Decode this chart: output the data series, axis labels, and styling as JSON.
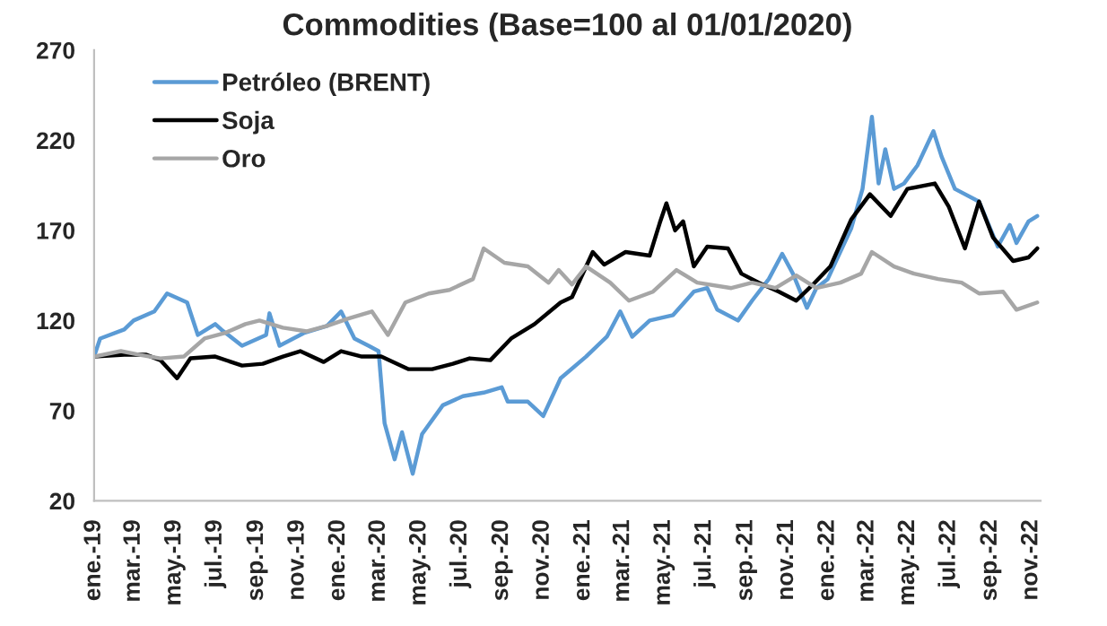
{
  "chart_data": {
    "type": "line",
    "title": "Commodities (Base=100 al 01/01/2020)",
    "ylim": [
      20,
      270
    ],
    "yticks": [
      20,
      70,
      120,
      170,
      220,
      270
    ],
    "xlim": [
      "2019-01-01",
      "2022-11-15"
    ],
    "xticks": [
      {
        "value": "2019-01-01",
        "label": "ene.-19"
      },
      {
        "value": "2019-03-01",
        "label": "mar.-19"
      },
      {
        "value": "2019-05-01",
        "label": "may.-19"
      },
      {
        "value": "2019-07-01",
        "label": "jul.-19"
      },
      {
        "value": "2019-09-01",
        "label": "sep.-19"
      },
      {
        "value": "2019-11-01",
        "label": "nov.-19"
      },
      {
        "value": "2020-01-01",
        "label": "ene.-20"
      },
      {
        "value": "2020-03-01",
        "label": "mar.-20"
      },
      {
        "value": "2020-05-01",
        "label": "may.-20"
      },
      {
        "value": "2020-07-01",
        "label": "jul.-20"
      },
      {
        "value": "2020-09-01",
        "label": "sep.-20"
      },
      {
        "value": "2020-11-01",
        "label": "nov.-20"
      },
      {
        "value": "2021-01-01",
        "label": "ene.-21"
      },
      {
        "value": "2021-03-01",
        "label": "mar.-21"
      },
      {
        "value": "2021-05-01",
        "label": "may.-21"
      },
      {
        "value": "2021-07-01",
        "label": "jul.-21"
      },
      {
        "value": "2021-09-01",
        "label": "sep.-21"
      },
      {
        "value": "2021-11-01",
        "label": "nov.-21"
      },
      {
        "value": "2022-01-01",
        "label": "ene.-22"
      },
      {
        "value": "2022-03-01",
        "label": "mar.-22"
      },
      {
        "value": "2022-05-01",
        "label": "may.-22"
      },
      {
        "value": "2022-07-01",
        "label": "jul.-22"
      },
      {
        "value": "2022-09-01",
        "label": "sep.-22"
      },
      {
        "value": "2022-11-01",
        "label": "nov.-22"
      }
    ],
    "grid": false,
    "legend": "top left",
    "marker": "none",
    "line_style": "solid",
    "series": [
      {
        "name": "Petróleo (BRENT)",
        "color": "#5b9bd5",
        "x": [
          "2019-01-01",
          "2019-01-10",
          "2019-02-15",
          "2019-03-01",
          "2019-04-01",
          "2019-04-20",
          "2019-05-20",
          "2019-06-05",
          "2019-07-01",
          "2019-07-10",
          "2019-08-10",
          "2019-09-15",
          "2019-09-20",
          "2019-10-05",
          "2019-11-10",
          "2019-12-15",
          "2020-01-05",
          "2020-01-25",
          "2020-02-15",
          "2020-03-01",
          "2020-03-10",
          "2020-03-25",
          "2020-04-05",
          "2020-04-21",
          "2020-05-05",
          "2020-06-05",
          "2020-07-05",
          "2020-08-05",
          "2020-09-01",
          "2020-09-10",
          "2020-10-10",
          "2020-11-02",
          "2020-11-28",
          "2021-01-05",
          "2021-02-05",
          "2021-02-25",
          "2021-03-15",
          "2021-04-10",
          "2021-05-15",
          "2021-06-15",
          "2021-07-05",
          "2021-07-20",
          "2021-08-20",
          "2021-09-10",
          "2021-10-05",
          "2021-10-25",
          "2021-11-10",
          "2021-12-01",
          "2021-12-15",
          "2022-01-01",
          "2022-02-05",
          "2022-02-22",
          "2022-03-08",
          "2022-03-18",
          "2022-03-28",
          "2022-04-10",
          "2022-04-25",
          "2022-05-15",
          "2022-06-08",
          "2022-06-20",
          "2022-07-10",
          "2022-08-15",
          "2022-09-12",
          "2022-09-30",
          "2022-10-10",
          "2022-10-28",
          "2022-11-10"
        ],
        "values": [
          100,
          110,
          115,
          120,
          125,
          135,
          130,
          112,
          118,
          115,
          106,
          112,
          124,
          106,
          113,
          117,
          125,
          110,
          106,
          103,
          63,
          43,
          58,
          35,
          57,
          73,
          78,
          80,
          83,
          75,
          75,
          67,
          88,
          100,
          111,
          125,
          111,
          120,
          123,
          136,
          138,
          126,
          120,
          131,
          143,
          157,
          146,
          127,
          138,
          143,
          171,
          193,
          233,
          196,
          215,
          193,
          196,
          206,
          225,
          211,
          193,
          186,
          161,
          173,
          163,
          175,
          178
        ]
      },
      {
        "name": "Soja",
        "color": "#000000",
        "x": [
          "2019-01-01",
          "2019-02-15",
          "2019-03-20",
          "2019-04-10",
          "2019-05-05",
          "2019-05-25",
          "2019-07-01",
          "2019-08-10",
          "2019-09-10",
          "2019-10-10",
          "2019-11-05",
          "2019-12-10",
          "2020-01-05",
          "2020-02-05",
          "2020-03-05",
          "2020-04-15",
          "2020-05-20",
          "2020-06-20",
          "2020-07-15",
          "2020-08-15",
          "2020-09-15",
          "2020-10-20",
          "2020-11-28",
          "2020-12-15",
          "2021-01-15",
          "2021-02-01",
          "2021-03-05",
          "2021-04-10",
          "2021-04-25",
          "2021-05-05",
          "2021-05-18",
          "2021-05-30",
          "2021-06-15",
          "2021-07-05",
          "2021-08-05",
          "2021-08-25",
          "2021-09-20",
          "2021-10-20",
          "2021-11-15",
          "2021-12-10",
          "2022-01-05",
          "2022-02-05",
          "2022-03-05",
          "2022-04-05",
          "2022-04-30",
          "2022-06-10",
          "2022-07-01",
          "2022-07-25",
          "2022-08-15",
          "2022-09-05",
          "2022-10-05",
          "2022-10-28",
          "2022-11-10"
        ],
        "values": [
          100,
          101,
          101,
          98,
          88,
          99,
          100,
          95,
          96,
          100,
          103,
          97,
          103,
          100,
          100,
          93,
          93,
          96,
          99,
          98,
          110,
          118,
          130,
          133,
          158,
          151,
          158,
          156,
          174,
          185,
          170,
          175,
          150,
          161,
          160,
          146,
          141,
          136,
          131,
          140,
          150,
          176,
          190,
          178,
          193,
          196,
          183,
          160,
          186,
          166,
          153,
          155,
          160
        ]
      },
      {
        "name": "Oro",
        "color": "#a6a6a6",
        "x": [
          "2019-01-01",
          "2019-02-10",
          "2019-03-10",
          "2019-04-10",
          "2019-05-15",
          "2019-06-15",
          "2019-07-15",
          "2019-08-15",
          "2019-09-05",
          "2019-10-10",
          "2019-11-15",
          "2019-12-15",
          "2020-01-15",
          "2020-02-20",
          "2020-03-15",
          "2020-04-10",
          "2020-05-15",
          "2020-06-15",
          "2020-07-20",
          "2020-08-05",
          "2020-09-05",
          "2020-10-10",
          "2020-11-10",
          "2020-11-25",
          "2020-12-15",
          "2021-01-05",
          "2021-02-10",
          "2021-03-10",
          "2021-04-15",
          "2021-05-20",
          "2021-06-20",
          "2021-08-10",
          "2021-09-10",
          "2021-10-15",
          "2021-11-15",
          "2021-12-15",
          "2022-01-20",
          "2022-02-20",
          "2022-03-08",
          "2022-04-10",
          "2022-05-10",
          "2022-06-15",
          "2022-07-20",
          "2022-08-15",
          "2022-09-20",
          "2022-10-10",
          "2022-11-10"
        ],
        "values": [
          100,
          103,
          101,
          99,
          100,
          110,
          113,
          118,
          120,
          116,
          114,
          117,
          121,
          125,
          112,
          130,
          135,
          137,
          143,
          160,
          152,
          150,
          141,
          148,
          140,
          150,
          141,
          131,
          136,
          148,
          141,
          138,
          141,
          138,
          145,
          138,
          141,
          146,
          158,
          150,
          146,
          143,
          141,
          135,
          136,
          126,
          130
        ]
      }
    ]
  }
}
